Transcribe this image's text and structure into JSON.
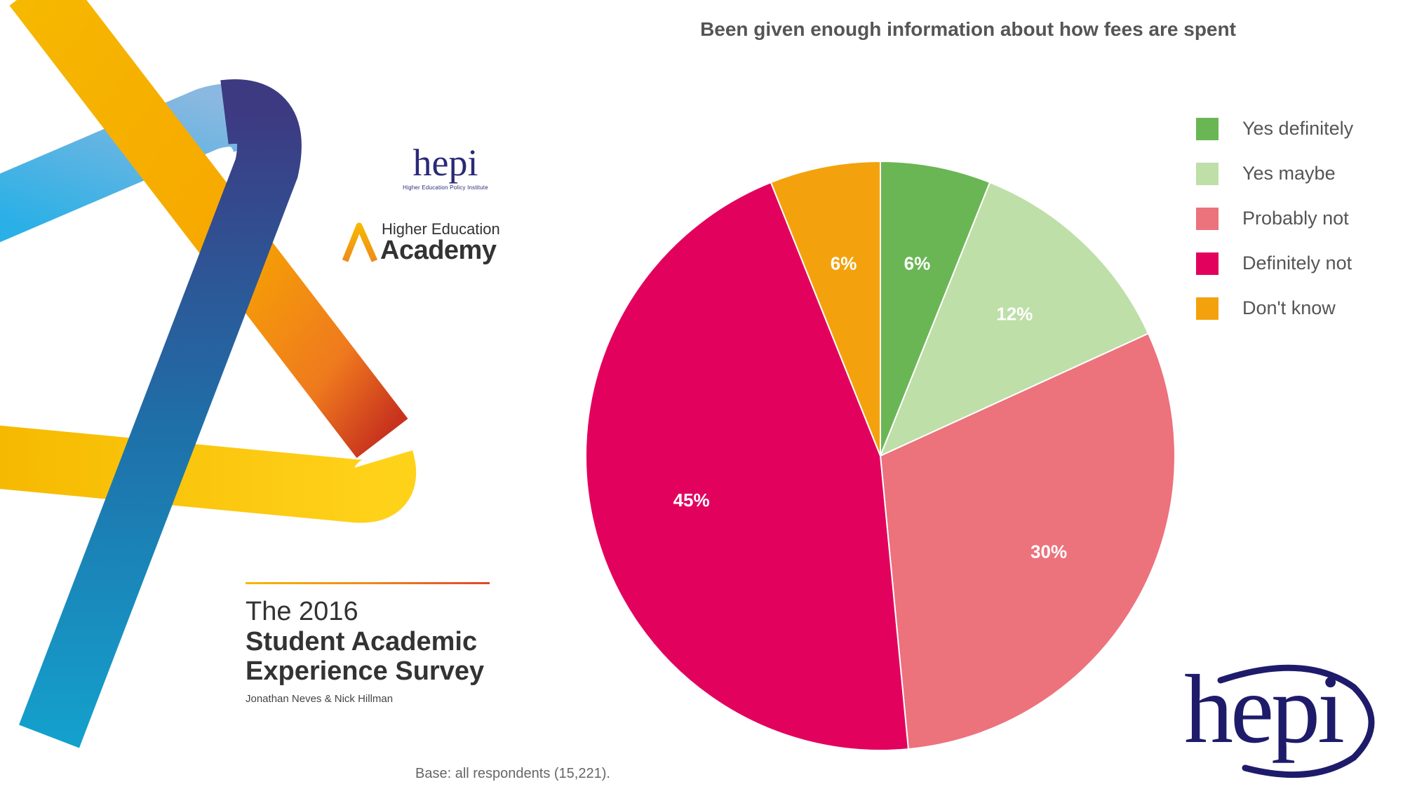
{
  "branding": {
    "hepi_small_word": "hepi",
    "hepi_small_subtitle": "Higher Education Policy Institute",
    "hea_line1": "Higher Education",
    "hea_line2": "Academy",
    "hepi_big_word": "hepi"
  },
  "report": {
    "year_line": "The 2016",
    "title_line1": "Student Academic",
    "title_line2": "Experience Survey",
    "authors": "Jonathan Neves & Nick Hillman"
  },
  "base_note": "Base: all respondents (15,221).",
  "colors": {
    "brand_navy": "#2b2a78",
    "ribbon_orange": "#f6b800",
    "ribbon_blue": "#1a8fc2",
    "ribbon_purple": "#3d3a82"
  },
  "chart_data": {
    "type": "pie",
    "title": "Been given enough information about how fees are spent",
    "legend_position": "right",
    "start": "top, clockwise",
    "slices": [
      {
        "label": "Yes definitely",
        "value": 6,
        "display": "6%",
        "color": "#6ab654"
      },
      {
        "label": "Yes maybe",
        "value": 12,
        "display": "12%",
        "color": "#bedfa8"
      },
      {
        "label": "Probably not",
        "value": 30,
        "display": "30%",
        "color": "#ec727c"
      },
      {
        "label": "Definitely not",
        "value": 45,
        "display": "45%",
        "color": "#e2025e"
      },
      {
        "label": "Don't know",
        "value": 6,
        "display": "6%",
        "color": "#f3a20d"
      }
    ]
  }
}
